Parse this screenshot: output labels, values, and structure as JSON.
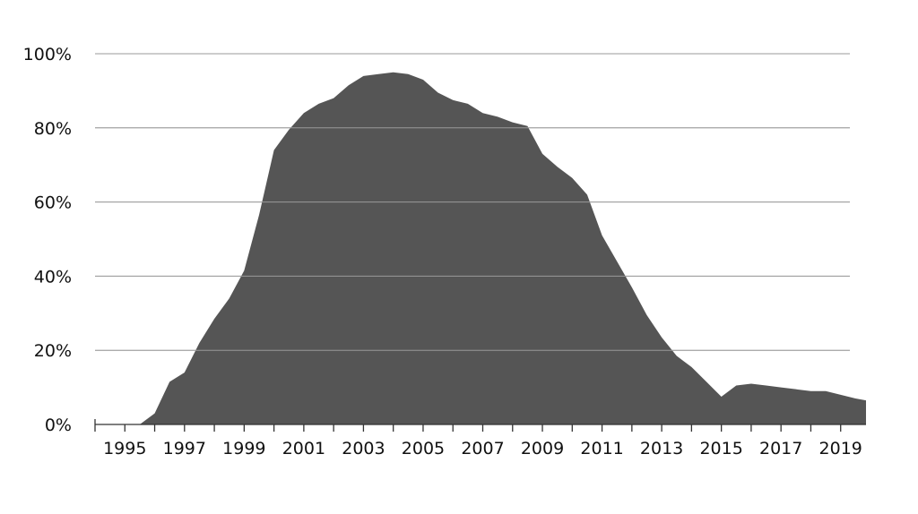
{
  "chart_data": {
    "type": "area",
    "title": "",
    "xlabel": "",
    "ylabel": "",
    "xlim": [
      1994.0,
      2019.85
    ],
    "ylim": [
      0,
      100
    ],
    "grid": true,
    "area_color": "#555555",
    "y_ticks": [
      0,
      20,
      40,
      60,
      80,
      100
    ],
    "y_tick_labels": [
      "0%",
      "20%",
      "40%",
      "60%",
      "80%",
      "100%"
    ],
    "x_ticks": [
      1995,
      1997,
      1999,
      2001,
      2003,
      2005,
      2007,
      2009,
      2011,
      2013,
      2015,
      2017,
      2019
    ],
    "x_tick_labels": [
      "1995",
      "1997",
      "1999",
      "2001",
      "2003",
      "2005",
      "2007",
      "2009",
      "2011",
      "2013",
      "2015",
      "2017",
      "2019"
    ],
    "x": [
      1995.0,
      1995.5,
      2000.0,
      1996.0,
      1996.5,
      1997.0,
      1997.5,
      1998.0,
      1998.5,
      1999.0,
      1999.5,
      2000.5,
      2001.0,
      2001.5,
      2002.0,
      2002.5,
      2003.0,
      2003.5,
      2004.0,
      2004.5,
      2005.0,
      2005.5,
      2006.0,
      2006.5,
      2007.0,
      2007.5,
      2008.0,
      2008.5,
      2009.0,
      2009.5,
      2010.0,
      2010.5,
      2011.0,
      2011.5,
      2012.0,
      2012.5,
      2013.0,
      2013.5,
      2014.0,
      2014.5,
      2015.0,
      2015.5,
      2016.0,
      2016.5,
      2017.0,
      2017.5,
      2018.0,
      2018.5,
      2019.0,
      2019.5,
      2019.85
    ],
    "series": [
      {
        "values": [
          0,
          0,
          74,
          3,
          11.5,
          14,
          22,
          28.5,
          34,
          41.5,
          56.5,
          79.5,
          84,
          86.5,
          88,
          91.5,
          94,
          94.5,
          95,
          94.5,
          93,
          89.5,
          87.5,
          86.5,
          84,
          83,
          81.5,
          80.5,
          73,
          69.5,
          66.5,
          62,
          51,
          44,
          37,
          29.5,
          23.5,
          18.5,
          15.5,
          11.5,
          7.5,
          10.5,
          11,
          10.5,
          10,
          9.5,
          9,
          9,
          8,
          7,
          6.5
        ]
      }
    ]
  }
}
